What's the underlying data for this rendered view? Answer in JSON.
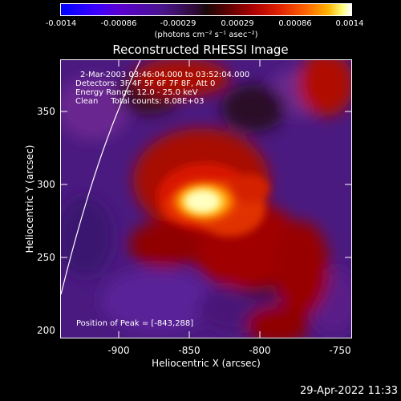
{
  "colorbar": {
    "ticks": [
      "-0.0014",
      "-0.00086",
      "-0.00029",
      "0.00029",
      "0.00086",
      "0.0014"
    ],
    "unit_label": "(photons cm⁻² s⁻¹ asec⁻²)"
  },
  "image": {
    "title": "Reconstructed RHESSI Image",
    "info_lines": [
      "2-Mar-2003 03:46:04.000 to 03:52:04.000",
      "Detectors: 3F 4F 5F 6F 7F 8F, Att 0",
      "Energy Range: 12.0 - 25.0 keV",
      "Clean     Total counts: 8.08E+03"
    ],
    "peak_text": "Position of Peak = [-843,288]",
    "colormap": "red-temperature"
  },
  "axes": {
    "xlabel": "Heliocentric X (arcsec)",
    "ylabel": "Heliocentric Y (arcsec)",
    "xticks": [
      "-900",
      "-850",
      "-800",
      "-750"
    ],
    "yticks": [
      "350",
      "300",
      "250",
      "200"
    ]
  },
  "timestamp": "29-Apr-2022 11:33"
}
